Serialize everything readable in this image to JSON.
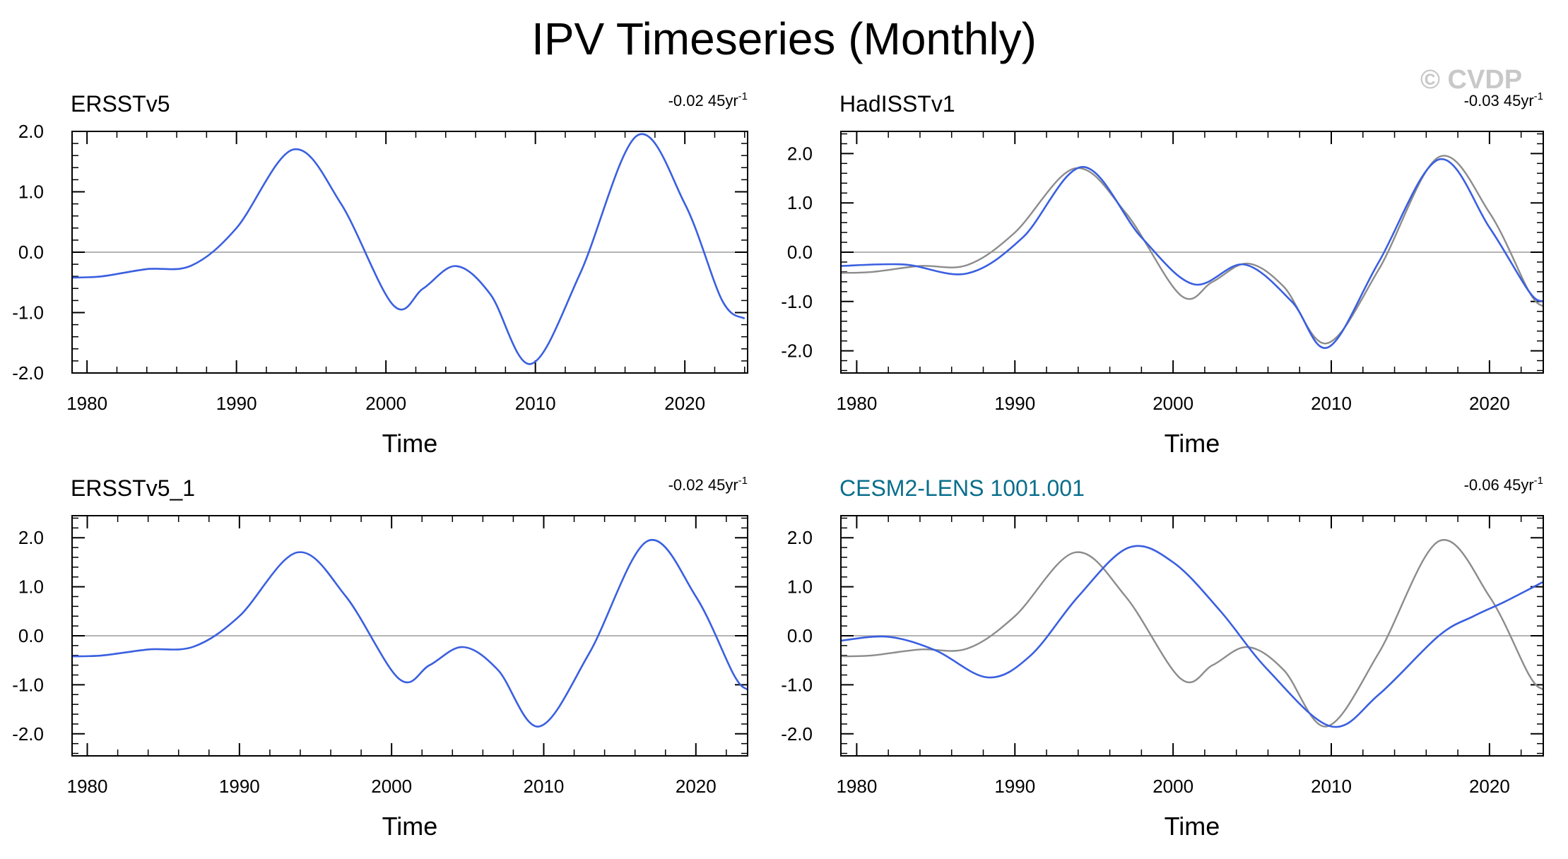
{
  "page": {
    "title": "IPV Timeseries (Monthly)",
    "watermark": "© CVDP"
  },
  "colors": {
    "primary": "#3a5fe0",
    "reference": "#8c8c8c",
    "zero_line": "#b4b4b4",
    "name_highlight": "#0a6e8c",
    "name_default": "#000000"
  },
  "chart_data": [
    {
      "type": "line",
      "name": "ERSSTv5",
      "trend_value": "-0.02 45yr",
      "trend_exp": "-1",
      "xlabel": "Time",
      "xlim": [
        1979,
        2024.2
      ],
      "ylim": [
        -2.0,
        2.0
      ],
      "xticks": [
        1980,
        1990,
        2000,
        2010,
        2020
      ],
      "yticks": [
        2.0,
        1.0,
        0.0,
        -1.0,
        -2.0
      ],
      "ytick_labels": [
        "2.0",
        "1.0",
        "0.0",
        "-1.0",
        "-2.0"
      ],
      "series": [
        {
          "name": "ERSSTv5",
          "role": "primary",
          "x": [
            1979,
            1981,
            1984,
            1987,
            1990,
            1993.8,
            1997,
            2000.5,
            2002.5,
            2004.7,
            2007,
            2009.7,
            2013,
            2016.8,
            2020,
            2022.5,
            2024
          ],
          "y": [
            -0.42,
            -0.4,
            -0.28,
            -0.22,
            0.4,
            1.7,
            0.8,
            -0.88,
            -0.6,
            -0.23,
            -0.7,
            -1.85,
            -0.35,
            1.93,
            0.8,
            -0.8,
            -1.1
          ]
        }
      ]
    },
    {
      "type": "line",
      "name": "HadISSTv1",
      "trend_value": "-0.03 45yr",
      "trend_exp": "-1",
      "xlabel": "Time",
      "xlim": [
        1979,
        2023.4
      ],
      "ylim": [
        -2.45,
        2.45
      ],
      "xticks": [
        1980,
        1990,
        2000,
        2010,
        2020
      ],
      "yticks": [
        2.0,
        1.0,
        0.0,
        -1.0,
        -2.0
      ],
      "ytick_labels": [
        "2.0",
        "1.0",
        "0.0",
        "-1.0",
        "-2.0"
      ],
      "series": [
        {
          "name": "ERSSTv5",
          "role": "reference",
          "x": [
            1979,
            1981,
            1984,
            1987,
            1990,
            1993.8,
            1997,
            2000.5,
            2002.5,
            2004.7,
            2007,
            2009.7,
            2013,
            2016.8,
            2020,
            2022.5,
            2023.4
          ],
          "y": [
            -0.42,
            -0.4,
            -0.28,
            -0.26,
            0.4,
            1.7,
            0.8,
            -0.88,
            -0.6,
            -0.23,
            -0.7,
            -1.85,
            -0.35,
            1.93,
            0.8,
            -0.8,
            -1.1
          ]
        },
        {
          "name": "HadISSTv1",
          "role": "primary",
          "x": [
            1979,
            1983,
            1987,
            1990.5,
            1994.3,
            1998,
            2001.3,
            2004.5,
            2007.5,
            2009.8,
            2013,
            2016.8,
            2020,
            2022.5,
            2023.4
          ],
          "y": [
            -0.28,
            -0.25,
            -0.43,
            0.3,
            1.73,
            0.3,
            -0.65,
            -0.25,
            -1.0,
            -1.93,
            -0.2,
            1.88,
            0.5,
            -0.8,
            -1.0
          ]
        }
      ]
    },
    {
      "type": "line",
      "name": "ERSSTv5_1",
      "trend_value": "-0.02 45yr",
      "trend_exp": "-1",
      "xlabel": "Time",
      "xlim": [
        1979,
        2023.4
      ],
      "ylim": [
        -2.45,
        2.45
      ],
      "xticks": [
        1980,
        1990,
        2000,
        2010,
        2020
      ],
      "yticks": [
        2.0,
        1.0,
        0.0,
        -1.0,
        -2.0
      ],
      "ytick_labels": [
        "2.0",
        "1.0",
        "0.0",
        "-1.0",
        "-2.0"
      ],
      "series": [
        {
          "name": "ERSSTv5_1",
          "role": "primary",
          "x": [
            1979,
            1981,
            1984,
            1987,
            1990,
            1993.8,
            1997,
            2000.5,
            2002.5,
            2004.7,
            2007,
            2009.7,
            2013,
            2016.8,
            2020,
            2022.5,
            2023.4
          ],
          "y": [
            -0.42,
            -0.4,
            -0.28,
            -0.22,
            0.4,
            1.7,
            0.8,
            -0.88,
            -0.6,
            -0.23,
            -0.7,
            -1.85,
            -0.35,
            1.93,
            0.8,
            -0.8,
            -1.1
          ]
        }
      ]
    },
    {
      "type": "line",
      "name": "CESM2-LENS 1001.001",
      "name_highlight": true,
      "trend_value": "-0.06 45yr",
      "trend_exp": "-1",
      "xlabel": "Time",
      "xlim": [
        1979,
        2023.4
      ],
      "ylim": [
        -2.45,
        2.45
      ],
      "xticks": [
        1980,
        1990,
        2000,
        2010,
        2020
      ],
      "yticks": [
        2.0,
        1.0,
        0.0,
        -1.0,
        -2.0
      ],
      "ytick_labels": [
        "2.0",
        "1.0",
        "0.0",
        "-1.0",
        "-2.0"
      ],
      "series": [
        {
          "name": "ERSSTv5",
          "role": "reference",
          "x": [
            1979,
            1981,
            1984,
            1987,
            1990,
            1993.8,
            1997,
            2000.5,
            2002.5,
            2004.7,
            2007,
            2009.7,
            2013,
            2016.8,
            2020,
            2022.5,
            2023.4
          ],
          "y": [
            -0.42,
            -0.4,
            -0.28,
            -0.26,
            0.4,
            1.7,
            0.8,
            -0.88,
            -0.6,
            -0.23,
            -0.7,
            -1.85,
            -0.35,
            1.93,
            0.8,
            -0.8,
            -1.1
          ]
        },
        {
          "name": "CESM2-LENS 1001.001",
          "role": "primary",
          "x": [
            1979,
            1982,
            1985,
            1988.3,
            1991,
            1994,
            1997.2,
            2000,
            2003,
            2006,
            2010,
            2013,
            2016.8,
            2019,
            2021,
            2023.4
          ],
          "y": [
            -0.1,
            -0.02,
            -0.3,
            -0.85,
            -0.4,
            0.8,
            1.8,
            1.5,
            0.5,
            -0.7,
            -1.85,
            -1.2,
            0.0,
            0.4,
            0.7,
            1.1
          ]
        }
      ]
    }
  ]
}
